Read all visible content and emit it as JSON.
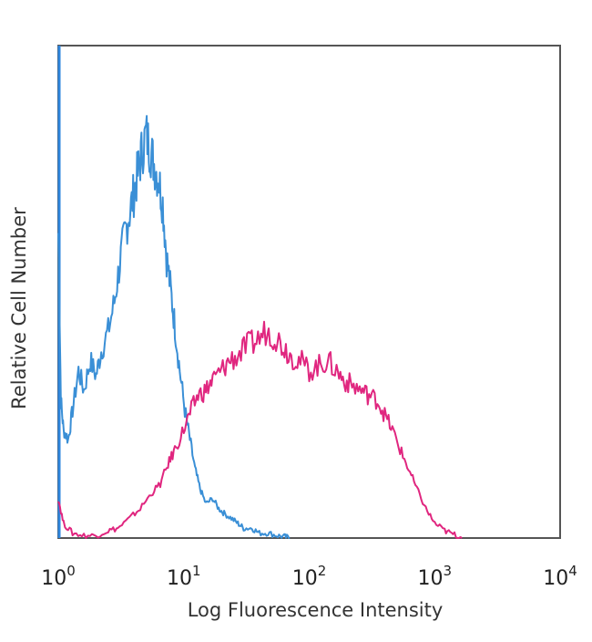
{
  "chart_data": {
    "type": "line",
    "title": "",
    "xlabel": "Log Fluorescence Intensity",
    "ylabel": "Relative Cell Number",
    "xscale": "log",
    "xlim": [
      1,
      10000
    ],
    "ylim": [
      0,
      100
    ],
    "grid": false,
    "legend": "none",
    "x_ticks": [
      {
        "value": 1,
        "base": "10",
        "exp": "0"
      },
      {
        "value": 10,
        "base": "10",
        "exp": "1"
      },
      {
        "value": 100,
        "base": "10",
        "exp": "2"
      },
      {
        "value": 1000,
        "base": "10",
        "exp": "3"
      },
      {
        "value": 10000,
        "base": "10",
        "exp": "4"
      }
    ],
    "series": [
      {
        "color": "#3a8fd6",
        "x": [
          1,
          1.05,
          1.1,
          1.2,
          1.3,
          1.45,
          1.6,
          1.8,
          2.0,
          2.2,
          2.5,
          2.8,
          3.1,
          3.4,
          3.7,
          4.0,
          4.3,
          4.6,
          5.0,
          5.4,
          5.8,
          6.3,
          6.8,
          7.3,
          7.9,
          8.5,
          9.3,
          10.2,
          11.2,
          12.3,
          13.5,
          15,
          17,
          19,
          21,
          24,
          27,
          30,
          35,
          40,
          47,
          55,
          63,
          70
        ],
        "y": [
          62,
          28,
          22,
          20,
          26,
          34,
          30,
          36,
          33,
          38,
          42,
          48,
          56,
          62,
          66,
          70,
          74,
          78,
          82,
          79,
          76,
          73,
          68,
          57,
          50,
          43,
          34,
          26,
          20,
          14,
          10,
          7,
          8,
          6,
          5,
          4,
          3,
          2,
          2,
          1,
          1,
          0.5,
          0.3,
          0
        ]
      },
      {
        "color": "#e0267f",
        "x": [
          1,
          1.1,
          1.3,
          1.6,
          2,
          2.5,
          3,
          3.7,
          4.5,
          5.5,
          6.5,
          7.5,
          8.5,
          10,
          11.5,
          13,
          15,
          17,
          20,
          23,
          27,
          32,
          38,
          45,
          53,
          62,
          72,
          85,
          100,
          120,
          140,
          165,
          190,
          220,
          260,
          300,
          350,
          400,
          460,
          530,
          620,
          720,
          850,
          1000,
          1200,
          1400,
          1650
        ],
        "y": [
          8,
          3,
          1,
          0.5,
          0.5,
          1.5,
          2,
          4,
          6,
          9,
          11,
          15,
          18,
          22,
          26,
          29,
          30,
          32,
          34,
          36,
          37,
          39,
          40,
          42,
          41,
          39,
          37,
          36,
          34,
          35,
          36,
          34,
          32,
          31,
          30,
          29,
          28,
          25,
          22,
          18,
          14,
          10,
          6,
          3,
          1.5,
          0.8,
          0
        ]
      }
    ]
  }
}
